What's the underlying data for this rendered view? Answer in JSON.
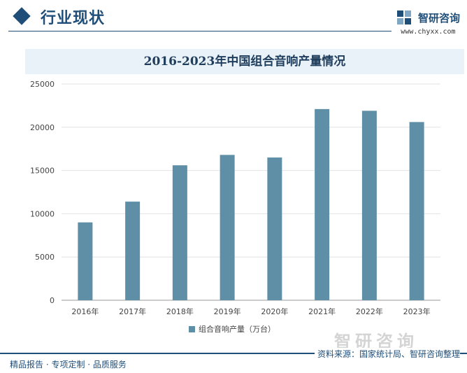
{
  "header": {
    "title": "行业现状",
    "logo_name": "智研咨询",
    "logo_url": "www.chyxx.com"
  },
  "chart_data": {
    "type": "bar",
    "title": "2016-2023年中国组合音响产量情况",
    "categories": [
      "2016年",
      "2017年",
      "2018年",
      "2019年",
      "2020年",
      "2021年",
      "2022年",
      "2023年"
    ],
    "series": [
      {
        "name": "组合音响产量（万台）",
        "values": [
          9000,
          11400,
          15600,
          16800,
          16500,
          22100,
          21900,
          20600
        ]
      }
    ],
    "ylim": [
      0,
      25000
    ],
    "yticks": [
      0,
      5000,
      10000,
      15000,
      20000,
      25000
    ],
    "grid": true,
    "legend": "bottom-center",
    "bar_color": "#5f8fa7"
  },
  "footer": {
    "left": "精品报告 · 专项定制 · 品质服务",
    "brand": "智研咨询",
    "source": "资料来源：国家统计局、智研咨询整理"
  }
}
